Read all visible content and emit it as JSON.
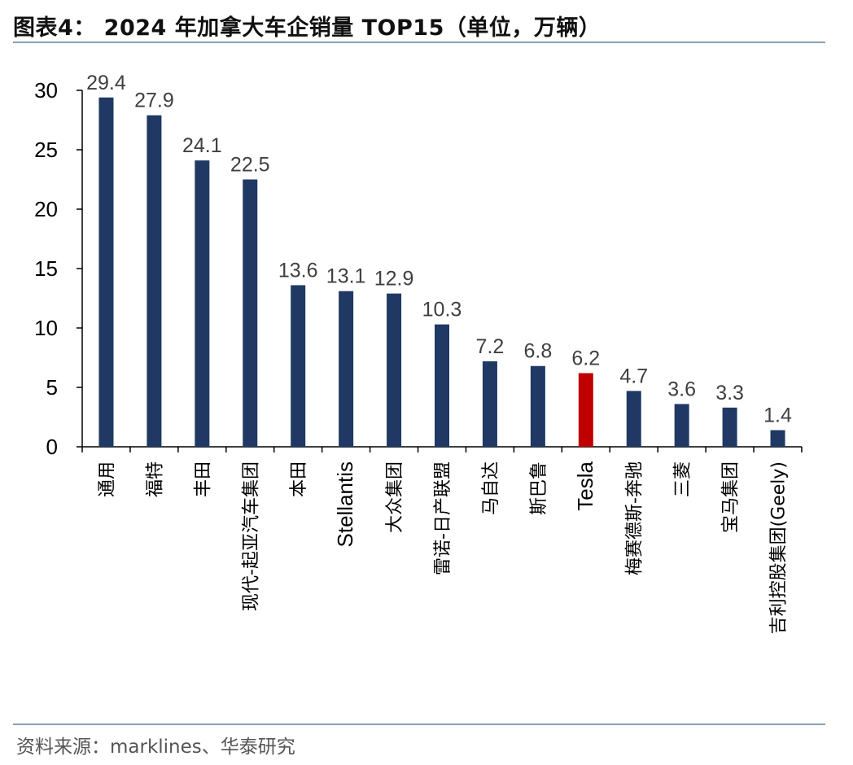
{
  "header": {
    "title": "图表4： 2024 年加拿大车企销量 TOP15（单位，万辆）"
  },
  "footer": {
    "source": "资料来源：marklines、华泰研究"
  },
  "colors": {
    "bar_default": "#1f3864",
    "bar_highlight": "#c00000",
    "axis": "#000000",
    "rule": "#8aa0b5"
  },
  "chart_data": {
    "type": "bar",
    "title": "2024 年加拿大车企销量 TOP15（单位，万辆）",
    "xlabel": "",
    "ylabel": "",
    "ylim": [
      0,
      30
    ],
    "yticks": [
      0,
      5,
      10,
      15,
      20,
      25,
      30
    ],
    "grid": false,
    "legend": "none",
    "highlight_category": "Tesla",
    "categories": [
      "通用",
      "福特",
      "丰田",
      "现代-起亚汽车集团",
      "本田",
      "Stellantis",
      "大众集团",
      "雷诺-日产联盟",
      "马自达",
      "斯巴鲁",
      "Tesla",
      "梅赛德斯-奔驰",
      "三菱",
      "宝马集团",
      "吉利控股集团(Geely)"
    ],
    "values": [
      29.4,
      27.9,
      24.1,
      22.5,
      13.6,
      13.1,
      12.9,
      10.3,
      7.2,
      6.8,
      6.2,
      4.7,
      3.6,
      3.3,
      1.4
    ],
    "data_labels": [
      "29.4",
      "27.9",
      "24.1",
      "22.5",
      "13.6",
      "13.1",
      "12.9",
      "10.3",
      "7.2",
      "6.8",
      "6.2",
      "4.7",
      "3.6",
      "3.3",
      "1.4"
    ]
  }
}
